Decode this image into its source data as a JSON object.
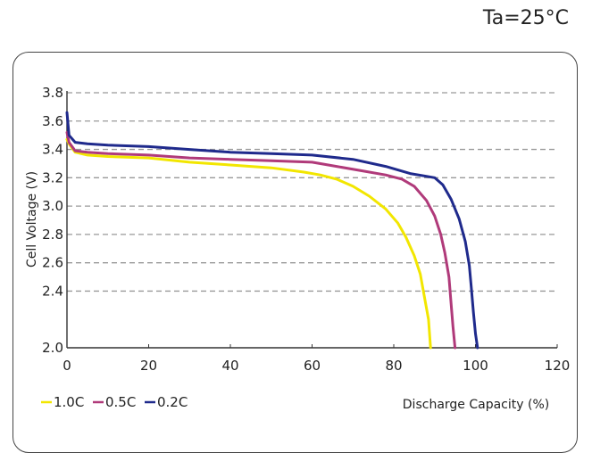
{
  "header": {
    "temperature": "Ta=25°C"
  },
  "chart_data": {
    "type": "line",
    "xlabel": "Discharge Capacity (%)",
    "ylabel": "Cell Voltage (V)",
    "xlim": [
      0,
      120
    ],
    "ylim": [
      2.0,
      3.8
    ],
    "xticks": [
      "0",
      "20",
      "40",
      "60",
      "80",
      "100",
      "120"
    ],
    "yticks": [
      "2.0",
      "2.4",
      "2.6",
      "2.8",
      "3.0",
      "3.2",
      "3.4",
      "3.6",
      "3.8"
    ],
    "grid": "horizontal dashed",
    "legend_position": "bottom-left",
    "series": [
      {
        "name": "1.0C",
        "color": "#f2e600",
        "points": [
          [
            0,
            3.47
          ],
          [
            0.5,
            3.44
          ],
          [
            2,
            3.38
          ],
          [
            5,
            3.36
          ],
          [
            10,
            3.35
          ],
          [
            20,
            3.34
          ],
          [
            30,
            3.31
          ],
          [
            40,
            3.29
          ],
          [
            50,
            3.27
          ],
          [
            58,
            3.24
          ],
          [
            62,
            3.22
          ],
          [
            66,
            3.19
          ],
          [
            70,
            3.14
          ],
          [
            74,
            3.07
          ],
          [
            78,
            2.98
          ],
          [
            81,
            2.88
          ],
          [
            83,
            2.78
          ],
          [
            85,
            2.65
          ],
          [
            86.5,
            2.52
          ],
          [
            87.5,
            2.36
          ],
          [
            88.5,
            2.2
          ],
          [
            89,
            2.0
          ]
        ]
      },
      {
        "name": "0.5C",
        "color": "#b03a7a",
        "points": [
          [
            0,
            3.52
          ],
          [
            0.5,
            3.45
          ],
          [
            2,
            3.39
          ],
          [
            5,
            3.38
          ],
          [
            10,
            3.37
          ],
          [
            20,
            3.36
          ],
          [
            30,
            3.34
          ],
          [
            40,
            3.33
          ],
          [
            50,
            3.32
          ],
          [
            60,
            3.31
          ],
          [
            66,
            3.28
          ],
          [
            72,
            3.25
          ],
          [
            78,
            3.22
          ],
          [
            82,
            3.19
          ],
          [
            85,
            3.14
          ],
          [
            88,
            3.04
          ],
          [
            90,
            2.93
          ],
          [
            91.5,
            2.8
          ],
          [
            92.5,
            2.67
          ],
          [
            93.5,
            2.5
          ],
          [
            94,
            2.32
          ],
          [
            94.5,
            2.15
          ],
          [
            95,
            2.0
          ]
        ]
      },
      {
        "name": "0.2C",
        "color": "#1f2a8c",
        "points": [
          [
            0,
            3.66
          ],
          [
            0.5,
            3.5
          ],
          [
            2,
            3.45
          ],
          [
            5,
            3.44
          ],
          [
            10,
            3.43
          ],
          [
            20,
            3.42
          ],
          [
            30,
            3.4
          ],
          [
            40,
            3.38
          ],
          [
            50,
            3.37
          ],
          [
            60,
            3.36
          ],
          [
            70,
            3.33
          ],
          [
            78,
            3.28
          ],
          [
            84,
            3.23
          ],
          [
            88,
            3.21
          ],
          [
            90,
            3.2
          ],
          [
            92,
            3.15
          ],
          [
            94,
            3.05
          ],
          [
            96,
            2.91
          ],
          [
            97.5,
            2.75
          ],
          [
            98.5,
            2.58
          ],
          [
            99,
            2.42
          ],
          [
            99.5,
            2.25
          ],
          [
            100,
            2.1
          ],
          [
            100.5,
            2.0
          ]
        ]
      }
    ]
  }
}
